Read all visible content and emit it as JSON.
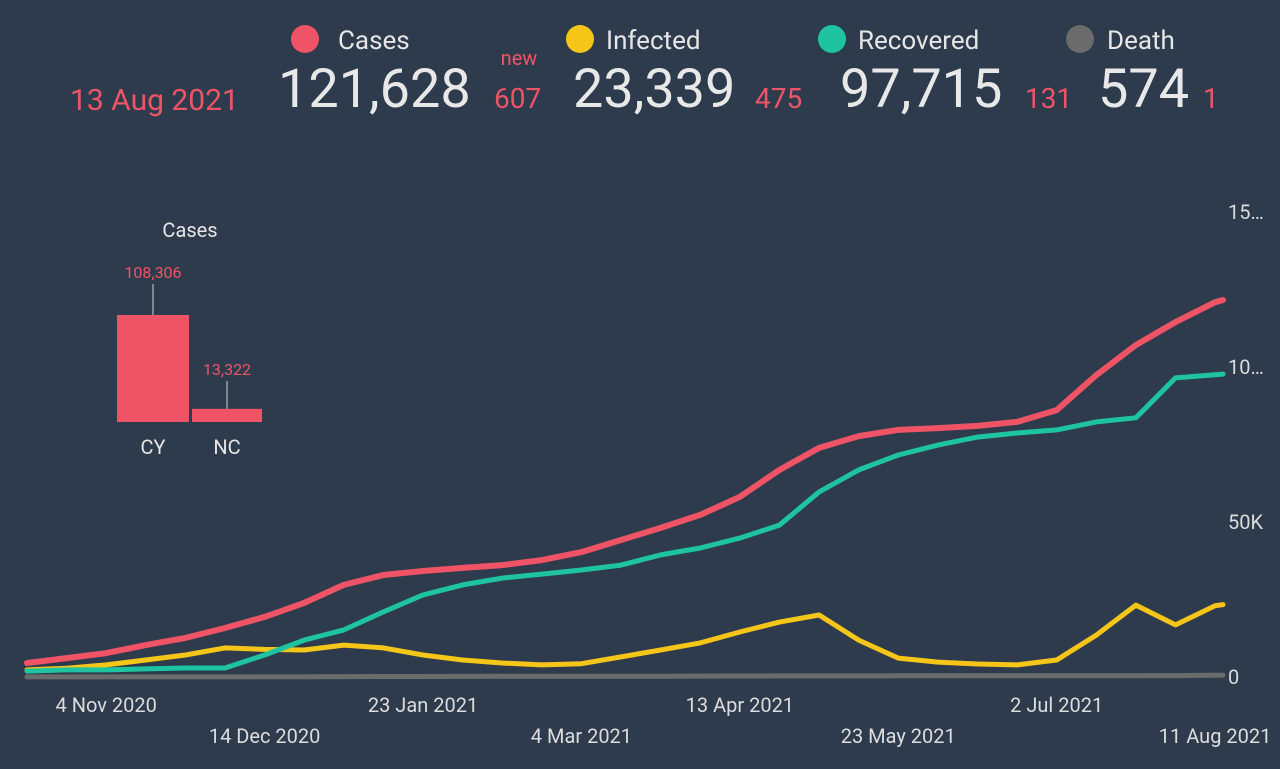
{
  "header": {
    "date": "13 Aug 2021",
    "new_label": "new",
    "stats": [
      {
        "total": "121,628",
        "new": "607"
      },
      {
        "total": "23,339",
        "new": "475"
      },
      {
        "total": "97,715",
        "new": "131"
      },
      {
        "total": "574",
        "new": "1"
      }
    ]
  },
  "chart_data": [
    {
      "type": "line",
      "x": [
        "2020-10-15",
        "2020-10-25",
        "2020-11-04",
        "2020-11-14",
        "2020-11-24",
        "2020-12-04",
        "2020-12-14",
        "2020-12-24",
        "2021-01-03",
        "2021-01-13",
        "2021-01-23",
        "2021-02-02",
        "2021-02-12",
        "2021-02-22",
        "2021-03-04",
        "2021-03-14",
        "2021-03-24",
        "2021-04-03",
        "2021-04-13",
        "2021-04-23",
        "2021-05-03",
        "2021-05-13",
        "2021-05-23",
        "2021-06-02",
        "2021-06-12",
        "2021-06-22",
        "2021-07-02",
        "2021-07-12",
        "2021-07-22",
        "2021-08-01",
        "2021-08-11",
        "2021-08-13"
      ],
      "series": [
        {
          "name": "Cases",
          "color": "#ef5466",
          "values": [
            4500,
            6100,
            7700,
            10300,
            12600,
            15800,
            19400,
            23900,
            29700,
            32900,
            34200,
            35200,
            36100,
            37700,
            40300,
            44200,
            48100,
            52300,
            58100,
            66800,
            73900,
            77700,
            79700,
            80300,
            81000,
            82300,
            86100,
            97400,
            107100,
            114500,
            120900,
            121628
          ]
        },
        {
          "name": "Infected",
          "color": "#f5c518",
          "values": [
            2300,
            2800,
            3900,
            5500,
            7100,
            9400,
            8900,
            8700,
            10300,
            9400,
            7100,
            5500,
            4500,
            3900,
            4300,
            6500,
            8700,
            11000,
            14500,
            17700,
            20000,
            11900,
            6100,
            4800,
            4200,
            3900,
            5500,
            13500,
            23200,
            16800,
            23000,
            23339
          ]
        },
        {
          "name": "Recovered",
          "color": "#1ec4a0",
          "values": [
            1900,
            2300,
            2300,
            2600,
            2900,
            2900,
            7100,
            11900,
            15200,
            21000,
            26500,
            29700,
            31900,
            33200,
            34500,
            36100,
            39400,
            41600,
            44800,
            49000,
            59700,
            66800,
            71600,
            74800,
            77400,
            78700,
            79700,
            82300,
            83600,
            96500,
            97500,
            97715
          ]
        },
        {
          "name": "Death",
          "color": "#6b6b6b",
          "values": [
            20,
            21,
            22,
            24,
            28,
            40,
            60,
            95,
            120,
            150,
            170,
            190,
            210,
            220,
            232,
            240,
            255,
            280,
            310,
            340,
            360,
            370,
            372,
            373,
            374,
            376,
            377,
            385,
            410,
            460,
            560,
            574
          ]
        }
      ],
      "xlim": [
        "2020-10-15",
        "2021-08-13"
      ],
      "xticks": [
        {
          "value": "2020-11-04",
          "label": "4 Nov 2020"
        },
        {
          "value": "2020-12-14",
          "label": "14 Dec 2020"
        },
        {
          "value": "2021-01-23",
          "label": "23 Jan 2021"
        },
        {
          "value": "2021-03-04",
          "label": "4 Mar 2021"
        },
        {
          "value": "2021-04-13",
          "label": "13 Apr 2021"
        },
        {
          "value": "2021-05-23",
          "label": "23 May 2021"
        },
        {
          "value": "2021-07-02",
          "label": "2 Jul 2021"
        },
        {
          "value": "2021-08-11",
          "label": "11 Aug 2021"
        }
      ],
      "ylim": [
        0,
        150000
      ],
      "yticks": [
        0,
        {
          "value": 50000,
          "label": "50K"
        },
        {
          "value": 100000,
          "label": "10…"
        },
        {
          "value": 150000,
          "label": "15…"
        }
      ],
      "grid": false
    },
    {
      "type": "bar",
      "title": "Cases",
      "categories": [
        "CY",
        "NC"
      ],
      "values": [
        108306,
        13322
      ],
      "value_labels": [
        "108,306",
        "13,322"
      ],
      "color": "#ef5466"
    }
  ]
}
